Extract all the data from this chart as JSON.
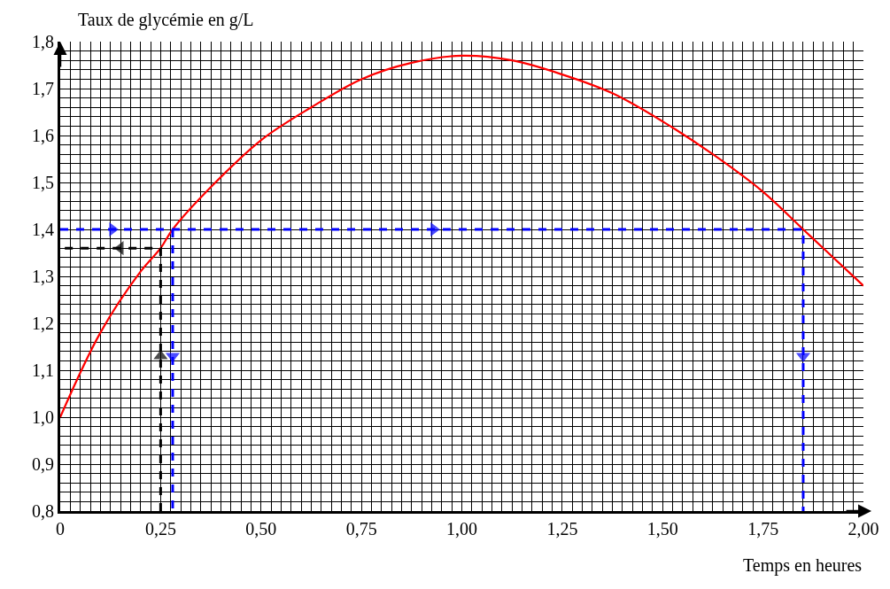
{
  "chart_data": {
    "type": "line",
    "xlabel": "Temps en heures",
    "ylabel": "Taux de glycémie en g/L",
    "xlim": [
      0,
      2
    ],
    "ylim": [
      0.8,
      1.8
    ],
    "xticks": [
      0,
      {
        "value": 0.25,
        "label": "0,25"
      },
      {
        "value": 0.5,
        "label": "0,50"
      },
      {
        "value": 0.75,
        "label": "0,75"
      },
      {
        "value": 1,
        "label": "1,00"
      },
      {
        "value": 1.25,
        "label": "1,25"
      },
      {
        "value": 1.5,
        "label": "1,50"
      },
      {
        "value": 1.75,
        "label": "1,75"
      },
      {
        "value": 2,
        "label": "2,00"
      }
    ],
    "yticks": [
      {
        "value": 0.8,
        "label": "0,8"
      },
      {
        "value": 0.9,
        "label": "0,9"
      },
      {
        "value": 1.0,
        "label": "1,0"
      },
      {
        "value": 1.1,
        "label": "1,1"
      },
      {
        "value": 1.2,
        "label": "1,2"
      },
      {
        "value": 1.3,
        "label": "1,3"
      },
      {
        "value": 1.4,
        "label": "1,4"
      },
      {
        "value": 1.5,
        "label": "1,5"
      },
      {
        "value": 1.6,
        "label": "1,6"
      },
      {
        "value": 1.7,
        "label": "1,7"
      },
      {
        "value": 1.8,
        "label": "1,8"
      }
    ],
    "grid": true,
    "marker": "none",
    "series": [
      {
        "color": "#ff0000",
        "line_style": "solid",
        "x": [
          0,
          0.1,
          0.2,
          0.25,
          0.28,
          0.375,
          0.5,
          0.625,
          0.75,
          0.875,
          1.0,
          1.125,
          1.25,
          1.375,
          1.5,
          1.625,
          1.75,
          1.85,
          1.9,
          2.0
        ],
        "values": [
          1.0,
          1.18,
          1.31,
          1.36,
          1.4,
          1.49,
          1.59,
          1.66,
          1.72,
          1.755,
          1.77,
          1.76,
          1.73,
          1.69,
          1.63,
          1.56,
          1.48,
          1.4,
          1.36,
          1.28
        ]
      },
      {
        "color": "#000000",
        "line_style": "dashed",
        "x": [
          0.25,
          0.25,
          0.25,
          0.15,
          0
        ],
        "values": [
          0.8,
          1.13,
          1.36,
          1.36,
          1.36
        ]
      },
      {
        "color": "#0000ff",
        "line_style": "dashed",
        "x": [
          0,
          0.13,
          0.93,
          1.85,
          1.85,
          1.85,
          null,
          0.28,
          0.28,
          0.28
        ],
        "values": [
          1.4,
          1.4,
          1.4,
          1.4,
          1.13,
          0.8,
          null,
          1.4,
          1.13,
          0.8
        ]
      }
    ]
  }
}
